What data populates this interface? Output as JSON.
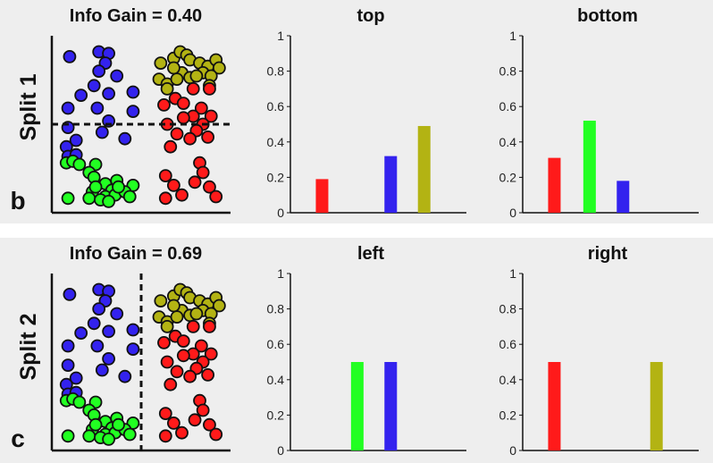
{
  "colors": {
    "red": "#ff1a1a",
    "green": "#22ff22",
    "blue": "#3322ee",
    "olive": "#b3b313",
    "panel_bg": "#eeeeee"
  },
  "rows": [
    {
      "row_label": "Split 1",
      "panel_letter": "b",
      "info_gain_title": "Info Gain = 0.40",
      "split_orientation": "horizontal",
      "left_chart_title": "top",
      "right_chart_title": "bottom"
    },
    {
      "row_label": "Split 2",
      "panel_letter": "c",
      "info_gain_title": "Info Gain = 0.69",
      "split_orientation": "vertical",
      "left_chart_title": "left",
      "right_chart_title": "right"
    }
  ],
  "y_ticks": [
    "0",
    "0.2",
    "0.4",
    "0.6",
    "0.8",
    "1"
  ],
  "chart_data": [
    {
      "type": "bar",
      "title": "top",
      "ylim": [
        0,
        1
      ],
      "xlabel": "",
      "ylabel": "",
      "categories": [
        "red",
        "green",
        "blue",
        "olive"
      ],
      "values": [
        0.19,
        0,
        0.32,
        0.49
      ],
      "grid": false
    },
    {
      "type": "bar",
      "title": "bottom",
      "ylim": [
        0,
        1
      ],
      "xlabel": "",
      "ylabel": "",
      "categories": [
        "red",
        "green",
        "blue",
        "olive"
      ],
      "values": [
        0.31,
        0.52,
        0.18,
        0
      ],
      "grid": false
    },
    {
      "type": "bar",
      "title": "left",
      "ylim": [
        0,
        1
      ],
      "xlabel": "",
      "ylabel": "",
      "categories": [
        "red",
        "green",
        "blue",
        "olive"
      ],
      "values": [
        0,
        0.5,
        0.5,
        0
      ],
      "grid": false
    },
    {
      "type": "bar",
      "title": "right",
      "ylim": [
        0,
        1
      ],
      "xlabel": "",
      "ylabel": "",
      "categories": [
        "red",
        "green",
        "blue",
        "olive"
      ],
      "values": [
        0.5,
        0,
        0,
        0.5
      ],
      "grid": false
    },
    {
      "type": "scatter",
      "title": "Info Gain = 0.40",
      "xlabel": "",
      "ylabel": "",
      "xlim": [
        0,
        1
      ],
      "ylim": [
        0,
        1
      ],
      "split_line": {
        "orientation": "horizontal",
        "value": 0.5
      },
      "series": [
        {
          "name": "blue",
          "color": "blue",
          "points": [
            [
              0.06,
              0.92
            ],
            [
              0.24,
              0.95
            ],
            [
              0.3,
              0.94
            ],
            [
              0.28,
              0.88
            ],
            [
              0.24,
              0.83
            ],
            [
              0.35,
              0.8
            ],
            [
              0.21,
              0.74
            ],
            [
              0.3,
              0.69
            ],
            [
              0.45,
              0.7
            ],
            [
              0.13,
              0.68
            ],
            [
              0.05,
              0.6
            ],
            [
              0.23,
              0.6
            ],
            [
              0.45,
              0.58
            ],
            [
              0.3,
              0.52
            ],
            [
              0.05,
              0.48
            ],
            [
              0.26,
              0.45
            ],
            [
              0.4,
              0.41
            ],
            [
              0.1,
              0.4
            ],
            [
              0.04,
              0.36
            ],
            [
              0.05,
              0.3
            ],
            [
              0.1,
              0.31
            ]
          ]
        },
        {
          "name": "green",
          "color": "green",
          "points": [
            [
              0.04,
              0.26
            ],
            [
              0.08,
              0.27
            ],
            [
              0.12,
              0.25
            ],
            [
              0.22,
              0.25
            ],
            [
              0.18,
              0.2
            ],
            [
              0.21,
              0.17
            ],
            [
              0.35,
              0.15
            ],
            [
              0.28,
              0.13
            ],
            [
              0.32,
              0.09
            ],
            [
              0.45,
              0.12
            ],
            [
              0.2,
              0.08
            ],
            [
              0.28,
              0.05
            ],
            [
              0.34,
              0.06
            ],
            [
              0.4,
              0.08
            ],
            [
              0.05,
              0.04
            ],
            [
              0.18,
              0.04
            ],
            [
              0.25,
              0.03
            ],
            [
              0.3,
              0.02
            ],
            [
              0.43,
              0.05
            ],
            [
              0.22,
              0.11
            ],
            [
              0.36,
              0.11
            ]
          ]
        },
        {
          "name": "olive",
          "color": "olive",
          "points": [
            [
              0.62,
              0.88
            ],
            [
              0.7,
              0.91
            ],
            [
              0.74,
              0.95
            ],
            [
              0.78,
              0.93
            ],
            [
              0.8,
              0.9
            ],
            [
              0.86,
              0.88
            ],
            [
              0.91,
              0.86
            ],
            [
              0.96,
              0.9
            ],
            [
              0.98,
              0.85
            ],
            [
              0.88,
              0.82
            ],
            [
              0.75,
              0.82
            ],
            [
              0.7,
              0.85
            ],
            [
              0.61,
              0.78
            ],
            [
              0.66,
              0.75
            ],
            [
              0.72,
              0.78
            ],
            [
              0.8,
              0.79
            ],
            [
              0.84,
              0.8
            ],
            [
              0.93,
              0.8
            ],
            [
              0.92,
              0.74
            ],
            [
              0.66,
              0.72
            ]
          ]
        },
        {
          "name": "red",
          "color": "red",
          "points": [
            [
              0.82,
              0.72
            ],
            [
              0.92,
              0.72
            ],
            [
              0.71,
              0.66
            ],
            [
              0.76,
              0.63
            ],
            [
              0.87,
              0.6
            ],
            [
              0.64,
              0.62
            ],
            [
              0.93,
              0.55
            ],
            [
              0.82,
              0.55
            ],
            [
              0.76,
              0.54
            ],
            [
              0.88,
              0.5
            ],
            [
              0.66,
              0.5
            ],
            [
              0.84,
              0.46
            ],
            [
              0.72,
              0.44
            ],
            [
              0.91,
              0.42
            ],
            [
              0.8,
              0.41
            ],
            [
              0.68,
              0.36
            ],
            [
              0.86,
              0.26
            ],
            [
              0.88,
              0.2
            ],
            [
              0.65,
              0.18
            ],
            [
              0.7,
              0.12
            ],
            [
              0.83,
              0.14
            ],
            [
              0.92,
              0.11
            ],
            [
              0.75,
              0.06
            ],
            [
              0.96,
              0.05
            ],
            [
              0.65,
              0.04
            ]
          ]
        }
      ]
    },
    {
      "type": "scatter",
      "title": "Info Gain = 0.69",
      "xlabel": "",
      "ylabel": "",
      "xlim": [
        0,
        1
      ],
      "ylim": [
        0,
        1
      ],
      "split_line": {
        "orientation": "vertical",
        "value": 0.5
      },
      "series": [
        {
          "name": "blue",
          "color": "blue",
          "points": [
            [
              0.06,
              0.92
            ],
            [
              0.24,
              0.95
            ],
            [
              0.3,
              0.94
            ],
            [
              0.28,
              0.88
            ],
            [
              0.24,
              0.83
            ],
            [
              0.35,
              0.8
            ],
            [
              0.21,
              0.74
            ],
            [
              0.3,
              0.69
            ],
            [
              0.45,
              0.7
            ],
            [
              0.13,
              0.68
            ],
            [
              0.05,
              0.6
            ],
            [
              0.23,
              0.6
            ],
            [
              0.45,
              0.58
            ],
            [
              0.3,
              0.52
            ],
            [
              0.05,
              0.48
            ],
            [
              0.26,
              0.45
            ],
            [
              0.4,
              0.41
            ],
            [
              0.1,
              0.4
            ],
            [
              0.04,
              0.36
            ],
            [
              0.05,
              0.3
            ],
            [
              0.1,
              0.31
            ]
          ]
        },
        {
          "name": "green",
          "color": "green",
          "points": [
            [
              0.04,
              0.26
            ],
            [
              0.08,
              0.27
            ],
            [
              0.12,
              0.25
            ],
            [
              0.22,
              0.25
            ],
            [
              0.18,
              0.2
            ],
            [
              0.21,
              0.17
            ],
            [
              0.35,
              0.15
            ],
            [
              0.28,
              0.13
            ],
            [
              0.32,
              0.09
            ],
            [
              0.45,
              0.12
            ],
            [
              0.2,
              0.08
            ],
            [
              0.28,
              0.05
            ],
            [
              0.34,
              0.06
            ],
            [
              0.4,
              0.08
            ],
            [
              0.05,
              0.04
            ],
            [
              0.18,
              0.04
            ],
            [
              0.25,
              0.03
            ],
            [
              0.3,
              0.02
            ],
            [
              0.43,
              0.05
            ],
            [
              0.22,
              0.11
            ],
            [
              0.36,
              0.11
            ]
          ]
        },
        {
          "name": "olive",
          "color": "olive",
          "points": [
            [
              0.62,
              0.88
            ],
            [
              0.7,
              0.91
            ],
            [
              0.74,
              0.95
            ],
            [
              0.78,
              0.93
            ],
            [
              0.8,
              0.9
            ],
            [
              0.86,
              0.88
            ],
            [
              0.91,
              0.86
            ],
            [
              0.96,
              0.9
            ],
            [
              0.98,
              0.85
            ],
            [
              0.88,
              0.82
            ],
            [
              0.75,
              0.82
            ],
            [
              0.7,
              0.85
            ],
            [
              0.61,
              0.78
            ],
            [
              0.66,
              0.75
            ],
            [
              0.72,
              0.78
            ],
            [
              0.8,
              0.79
            ],
            [
              0.84,
              0.8
            ],
            [
              0.93,
              0.8
            ],
            [
              0.92,
              0.74
            ],
            [
              0.66,
              0.72
            ]
          ]
        },
        {
          "name": "red",
          "color": "red",
          "points": [
            [
              0.82,
              0.72
            ],
            [
              0.92,
              0.72
            ],
            [
              0.71,
              0.66
            ],
            [
              0.76,
              0.63
            ],
            [
              0.87,
              0.6
            ],
            [
              0.64,
              0.62
            ],
            [
              0.93,
              0.55
            ],
            [
              0.82,
              0.55
            ],
            [
              0.76,
              0.54
            ],
            [
              0.88,
              0.5
            ],
            [
              0.66,
              0.5
            ],
            [
              0.84,
              0.46
            ],
            [
              0.72,
              0.44
            ],
            [
              0.91,
              0.42
            ],
            [
              0.8,
              0.41
            ],
            [
              0.68,
              0.36
            ],
            [
              0.86,
              0.26
            ],
            [
              0.88,
              0.2
            ],
            [
              0.65,
              0.18
            ],
            [
              0.7,
              0.12
            ],
            [
              0.83,
              0.14
            ],
            [
              0.92,
              0.11
            ],
            [
              0.75,
              0.06
            ],
            [
              0.96,
              0.05
            ],
            [
              0.65,
              0.04
            ]
          ]
        }
      ]
    }
  ]
}
